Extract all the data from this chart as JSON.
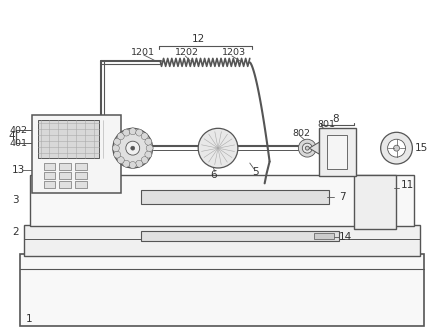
{
  "bg_color": "#ffffff",
  "lc": "#555555",
  "lc_dark": "#333333",
  "fc_light": "#f5f5f5",
  "fc_mid": "#e0e0e0",
  "fc_dark": "#cccccc",
  "figure_width": 4.44,
  "figure_height": 3.33,
  "dpi": 100,
  "label_fs": 7.5,
  "small_fs": 6.8
}
